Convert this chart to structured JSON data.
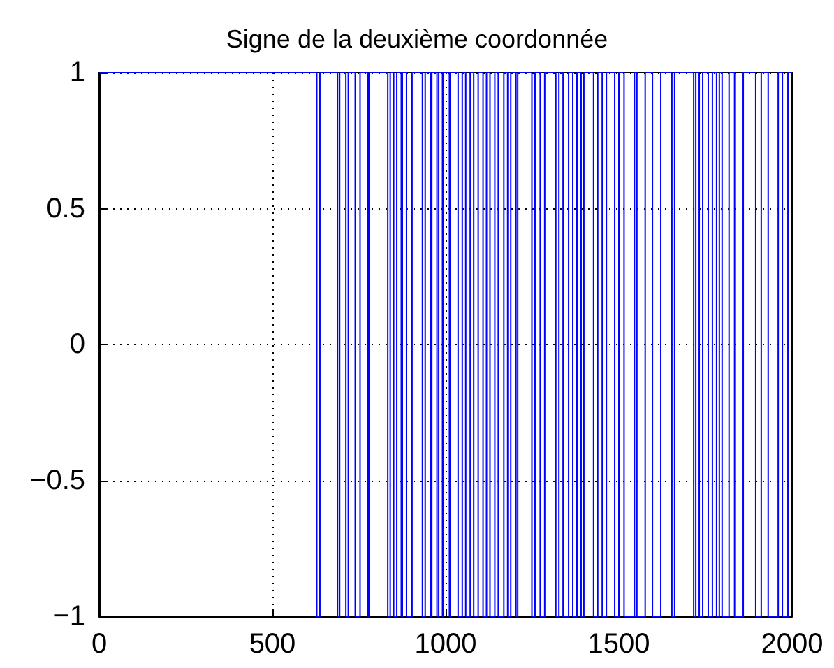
{
  "chart_data": {
    "type": "step",
    "title": "Signe de la deuxième coordonnée",
    "x": [
      0,
      628,
      637,
      688,
      694,
      712,
      719,
      739,
      753,
      775,
      779,
      833,
      840,
      850,
      859,
      872,
      875,
      887,
      903,
      933,
      941,
      957,
      960,
      975,
      980,
      991,
      994,
      1011,
      1014,
      1036,
      1048,
      1058,
      1071,
      1081,
      1094,
      1108,
      1118,
      1128,
      1142,
      1152,
      1168,
      1179,
      1188,
      1203,
      1208,
      1249,
      1258,
      1273,
      1286,
      1318,
      1327,
      1339,
      1355,
      1367,
      1379,
      1391,
      1399,
      1427,
      1439,
      1452,
      1464,
      1488,
      1500,
      1515,
      1545,
      1552,
      1576,
      1597,
      1621,
      1653,
      1661,
      1716,
      1722,
      1732,
      1742,
      1758,
      1770,
      1782,
      1790,
      1798,
      1818,
      1834,
      1859,
      1895,
      1911,
      1931,
      1960,
      1972,
      1988,
      2000
    ],
    "series": [
      {
        "color": "#0000ff",
        "values": [
          1,
          -1,
          1,
          -1,
          1,
          -1,
          1,
          -1,
          1,
          -1,
          1,
          -1,
          1,
          -1,
          1,
          -1,
          1,
          -1,
          1,
          -1,
          1,
          -1,
          1,
          -1,
          1,
          -1,
          1,
          -1,
          1,
          -1,
          1,
          -1,
          1,
          -1,
          1,
          -1,
          1,
          -1,
          1,
          -1,
          1,
          -1,
          1,
          -1,
          1,
          -1,
          1,
          -1,
          1,
          -1,
          1,
          -1,
          1,
          -1,
          1,
          -1,
          1,
          -1,
          1,
          -1,
          1,
          -1,
          1,
          -1,
          1,
          -1,
          1,
          -1,
          1,
          -1,
          1,
          -1,
          1,
          -1,
          1,
          -1,
          1,
          -1,
          1,
          -1,
          1,
          -1,
          1,
          -1,
          1,
          -1,
          1,
          -1,
          1,
          1
        ]
      }
    ],
    "xlim": [
      0,
      2000
    ],
    "xticks": [
      0,
      500,
      1000,
      1500,
      2000
    ],
    "ylim": [
      -1,
      1
    ],
    "yticks": [
      {
        "value": -1,
        "label": "−1"
      },
      {
        "value": -0.5,
        "label": "−0.5"
      },
      0,
      0.5,
      1
    ],
    "grid": true,
    "line_style": "solid",
    "marker": "none"
  }
}
